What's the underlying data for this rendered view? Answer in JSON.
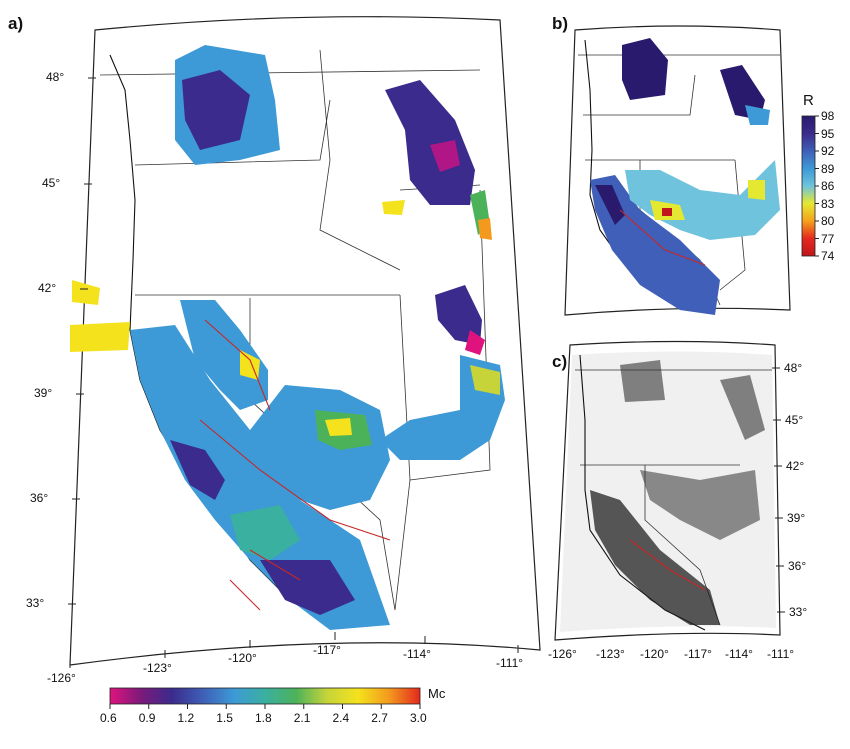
{
  "panels": {
    "a": {
      "label": "a)"
    },
    "b": {
      "label": "b)",
      "colorbar": {
        "title": "R",
        "ticks": [
          "98",
          "95",
          "92",
          "89",
          "86",
          "83",
          "80",
          "77",
          "74"
        ]
      }
    },
    "c": {
      "label": "c)"
    }
  },
  "map_a": {
    "lat_labels": [
      "48°",
      "45°",
      "42°",
      "39°",
      "36°",
      "33°"
    ],
    "lon_labels": [
      "-126°",
      "-123°",
      "-120°",
      "-117°",
      "-114°",
      "-111°"
    ]
  },
  "map_c": {
    "lat_labels": [
      "48°",
      "45°",
      "42°",
      "39°",
      "36°",
      "33°"
    ],
    "lon_labels": [
      "-126°",
      "-123°",
      "-120°",
      "-117°",
      "-114°",
      "-111°"
    ]
  },
  "colorbar_mc": {
    "title": "Mc",
    "ticks": [
      "0.6",
      "0.9",
      "1.2",
      "1.5",
      "1.8",
      "2.1",
      "2.4",
      "2.7",
      "3.0"
    ],
    "colors": [
      "#e0137e",
      "#7b1a7a",
      "#3b2b8c",
      "#3f5fb8",
      "#3d9ad6",
      "#3ab0a0",
      "#4cb25a",
      "#c6d43a",
      "#f4e21d",
      "#f39a1e",
      "#e5281e"
    ]
  },
  "colorbar_r": {
    "colors": [
      "#2a1a6e",
      "#3b2b8c",
      "#3f5fb8",
      "#3d9ad6",
      "#6fc3dc",
      "#e5e830",
      "#f4a21d",
      "#e5281e",
      "#c0161c"
    ]
  }
}
